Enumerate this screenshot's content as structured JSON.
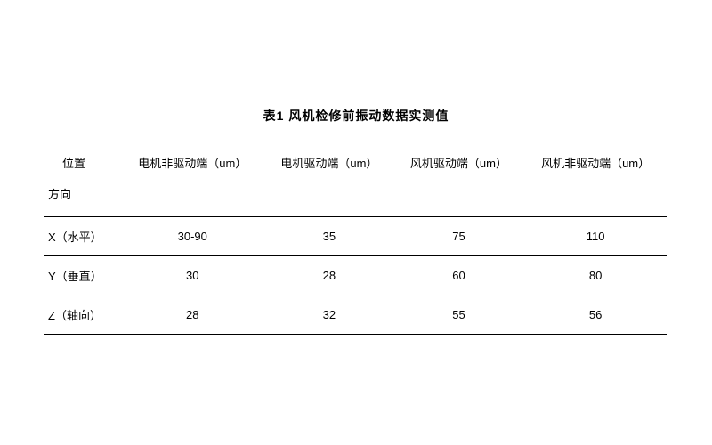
{
  "title": "表1  风机检修前振动数据实测值",
  "table": {
    "position_label": "位置",
    "direction_label": "方向",
    "columns": [
      "电机非驱动端（um）",
      "电机驱动端（um）",
      "风机驱动端（um）",
      "风机非驱动端（um）"
    ],
    "rows": [
      {
        "label": "X（水平）",
        "values": [
          "30-90",
          "35",
          "75",
          "110"
        ]
      },
      {
        "label": "Y（垂直）",
        "values": [
          "30",
          "28",
          "60",
          "80"
        ]
      },
      {
        "label": "Z（轴向）",
        "values": [
          "28",
          "32",
          "55",
          "56"
        ]
      }
    ],
    "styling": {
      "title_fontsize": 14,
      "title_fontweight": "bold",
      "cell_fontsize": 13,
      "border_color": "#000000",
      "background_color": "#ffffff",
      "text_color": "#000000",
      "column_alignment": [
        "left",
        "center",
        "center",
        "center",
        "center"
      ]
    }
  }
}
